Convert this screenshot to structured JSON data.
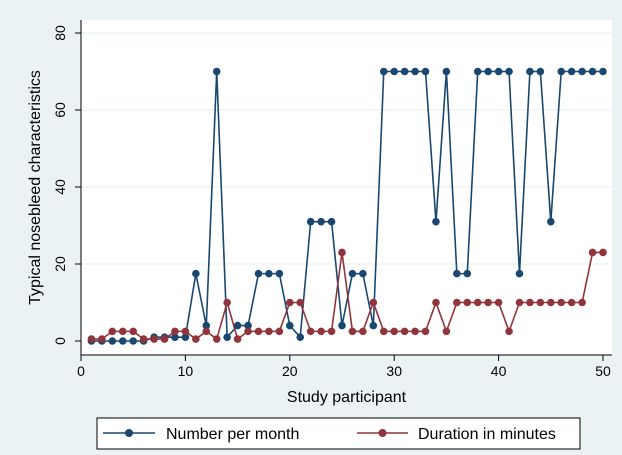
{
  "chart_data": {
    "type": "line",
    "xlabel": "Study participant",
    "ylabel": "Typical nosebleed characteristics",
    "xlim": [
      0,
      50
    ],
    "ylim": [
      0,
      80
    ],
    "xticks": [
      0,
      10,
      20,
      30,
      40,
      50
    ],
    "yticks": [
      0,
      20,
      40,
      60,
      80
    ],
    "grid": "horizontal",
    "legend_position": "bottom",
    "x": [
      1,
      2,
      3,
      4,
      5,
      6,
      7,
      8,
      9,
      10,
      11,
      12,
      13,
      14,
      15,
      16,
      17,
      18,
      19,
      20,
      21,
      22,
      23,
      24,
      25,
      26,
      27,
      28,
      29,
      30,
      31,
      32,
      33,
      34,
      35,
      36,
      37,
      38,
      39,
      40,
      41,
      42,
      43,
      44,
      45,
      46,
      47,
      48,
      49,
      50
    ],
    "series": [
      {
        "name": "Number per month",
        "color": "#1a476f",
        "values": [
          0,
          0,
          0,
          0,
          0,
          0,
          1,
          1,
          1,
          1,
          17.5,
          4,
          70,
          1,
          4,
          4,
          17.5,
          17.5,
          17.5,
          4,
          1,
          31,
          31,
          31,
          4,
          17.5,
          17.5,
          4,
          70,
          70,
          70,
          70,
          70,
          31,
          70,
          17.5,
          17.5,
          70,
          70,
          70,
          70,
          17.5,
          70,
          70,
          31,
          70,
          70,
          70,
          70,
          70
        ]
      },
      {
        "name": "Duration in minutes",
        "color": "#90353b",
        "values": [
          0.5,
          0.5,
          2.5,
          2.5,
          2.5,
          0.5,
          0.5,
          0.5,
          2.5,
          2.5,
          0.5,
          2.5,
          0.5,
          10,
          0.5,
          2.5,
          2.5,
          2.5,
          2.5,
          10,
          10,
          2.5,
          2.5,
          2.5,
          23,
          2.5,
          2.5,
          10,
          2.5,
          2.5,
          2.5,
          2.5,
          2.5,
          10,
          2.5,
          10,
          10,
          10,
          10,
          10,
          2.5,
          10,
          10,
          10,
          10,
          10,
          10,
          10,
          23,
          23
        ]
      }
    ]
  }
}
